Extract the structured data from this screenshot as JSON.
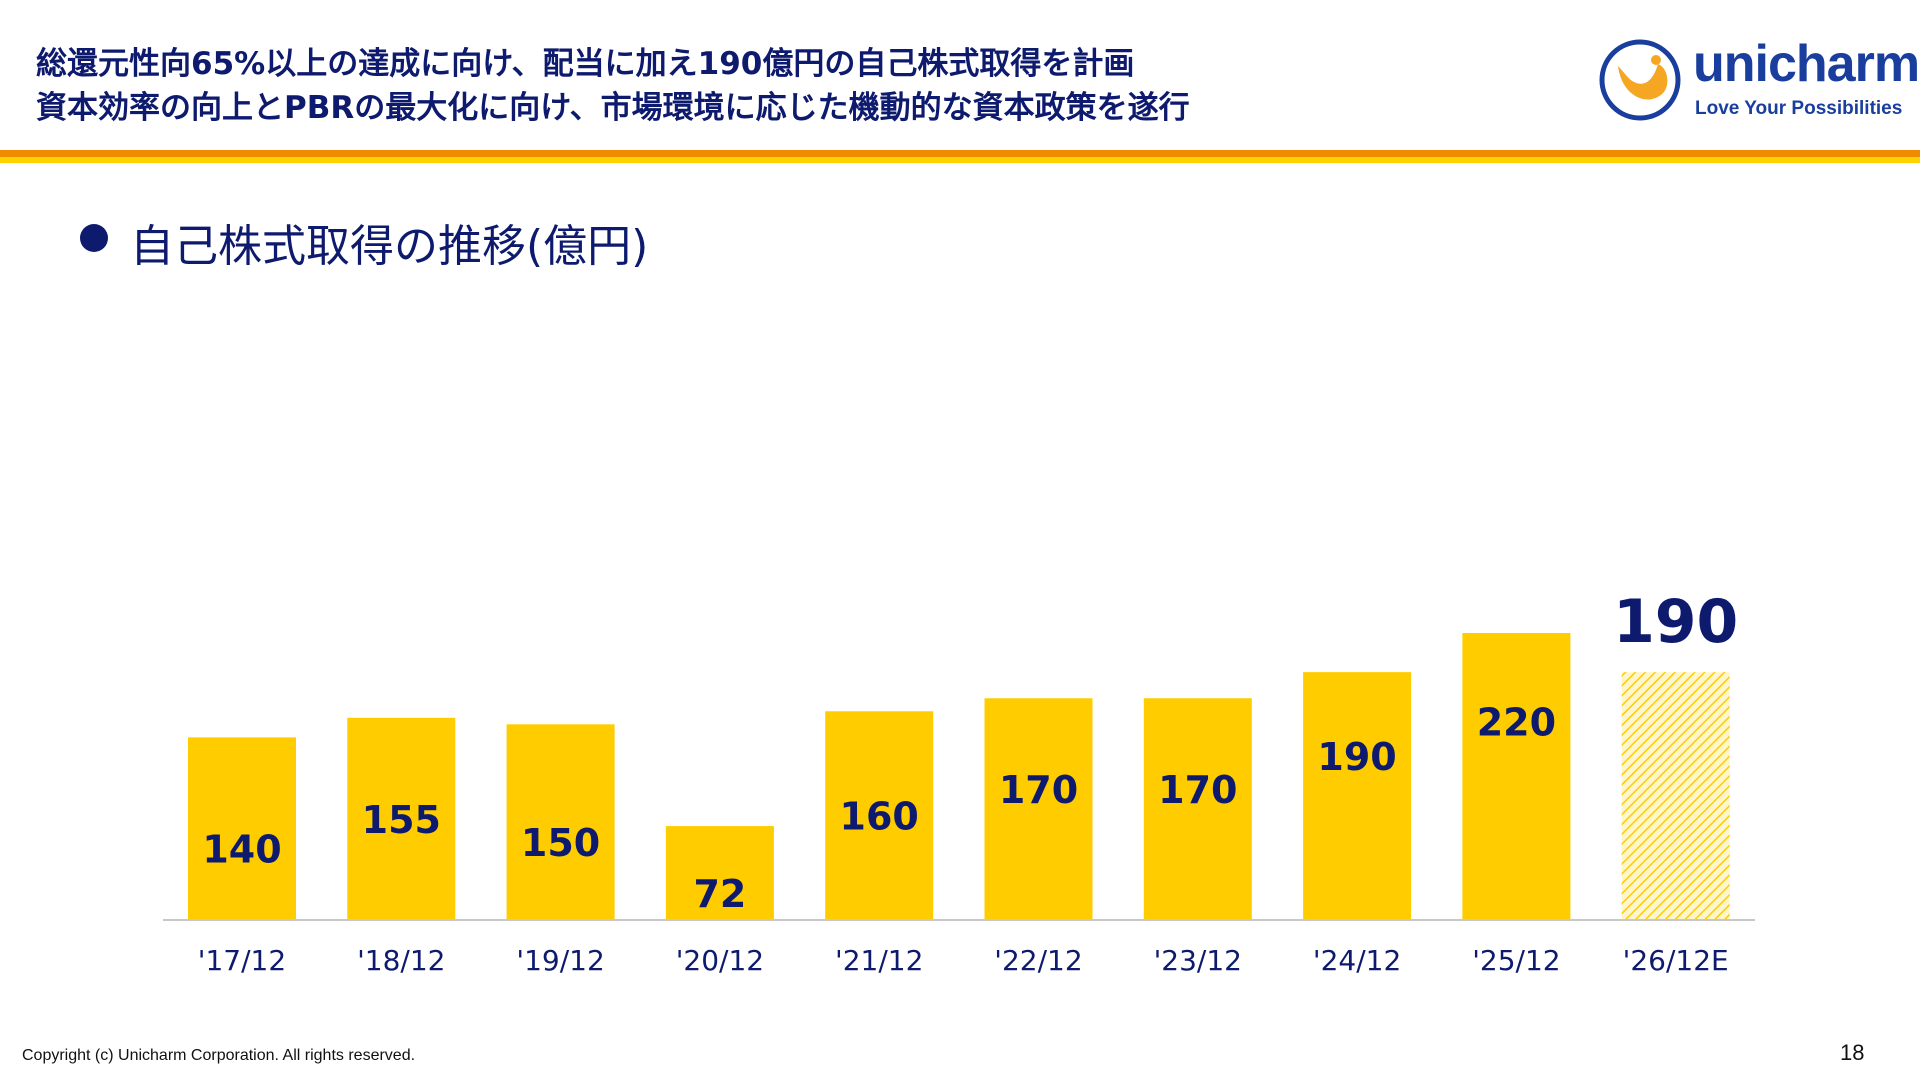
{
  "header": {
    "headline_1": "総還元性向65%以上の達成に向け、配当に加え190億円の自己株式取得を計画",
    "headline_2": "資本効率の向上とPBRの最大化に向け、市場環境に応じた機動的な資本政策を遂行",
    "logo_name": "unicharm",
    "logo_tagline": "Love Your Possibilities",
    "logo_icon": "unicharm-logo-icon"
  },
  "section": {
    "title": "自己株式取得の推移(億円)"
  },
  "colors": {
    "navy": "#0d1a6e",
    "bar_yellow": "#ffcc00",
    "rule_orange": "#f08a00",
    "rule_yellow": "#ffd200",
    "logo_blue": "#1a3e9e"
  },
  "chart_data": {
    "type": "bar",
    "title": "自己株式取得の推移(億円)",
    "categories": [
      "'17/12",
      "'18/12",
      "'19/12",
      "'20/12",
      "'21/12",
      "'22/12",
      "'23/12",
      "'24/12",
      "'25/12",
      "'26/12E"
    ],
    "values": [
      140,
      155,
      150,
      72,
      160,
      170,
      170,
      190,
      220,
      190
    ],
    "data_labels": [
      "140",
      "155",
      "150",
      "72",
      "160",
      "170",
      "170",
      "190",
      "220",
      "190"
    ],
    "forecast_index": 9,
    "forecast_style": "hatched",
    "ylim": [
      0,
      260
    ],
    "grid": false,
    "legend": "none"
  },
  "footer": {
    "copyright": "Copyright (c) Unicharm Corporation. All rights reserved.",
    "page_number": "18"
  }
}
